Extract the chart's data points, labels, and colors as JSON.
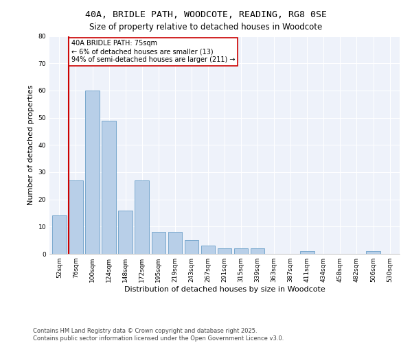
{
  "title": "40A, BRIDLE PATH, WOODCOTE, READING, RG8 0SE",
  "subtitle": "Size of property relative to detached houses in Woodcote",
  "xlabel": "Distribution of detached houses by size in Woodcote",
  "ylabel": "Number of detached properties",
  "categories": [
    "52sqm",
    "76sqm",
    "100sqm",
    "124sqm",
    "148sqm",
    "172sqm",
    "195sqm",
    "219sqm",
    "243sqm",
    "267sqm",
    "291sqm",
    "315sqm",
    "339sqm",
    "363sqm",
    "387sqm",
    "411sqm",
    "434sqm",
    "458sqm",
    "482sqm",
    "506sqm",
    "530sqm"
  ],
  "values": [
    14,
    27,
    60,
    49,
    16,
    27,
    8,
    8,
    5,
    3,
    2,
    2,
    2,
    0,
    0,
    1,
    0,
    0,
    0,
    1,
    0
  ],
  "bar_color": "#b8cfe8",
  "bar_edge_color": "#6b9fc8",
  "marker_color": "#cc0000",
  "annotation_title": "40A BRIDLE PATH: 75sqm",
  "annotation_line1": "← 6% of detached houses are smaller (13)",
  "annotation_line2": "94% of semi-detached houses are larger (211) →",
  "annotation_box_color": "#cc0000",
  "ylim": [
    0,
    80
  ],
  "yticks": [
    0,
    10,
    20,
    30,
    40,
    50,
    60,
    70,
    80
  ],
  "footer1": "Contains HM Land Registry data © Crown copyright and database right 2025.",
  "footer2": "Contains public sector information licensed under the Open Government Licence v3.0.",
  "bg_color": "#eef2fa",
  "title_fontsize": 9.5,
  "subtitle_fontsize": 8.5,
  "tick_fontsize": 6.5,
  "ylabel_fontsize": 8,
  "xlabel_fontsize": 8,
  "annotation_fontsize": 7,
  "footer_fontsize": 6
}
